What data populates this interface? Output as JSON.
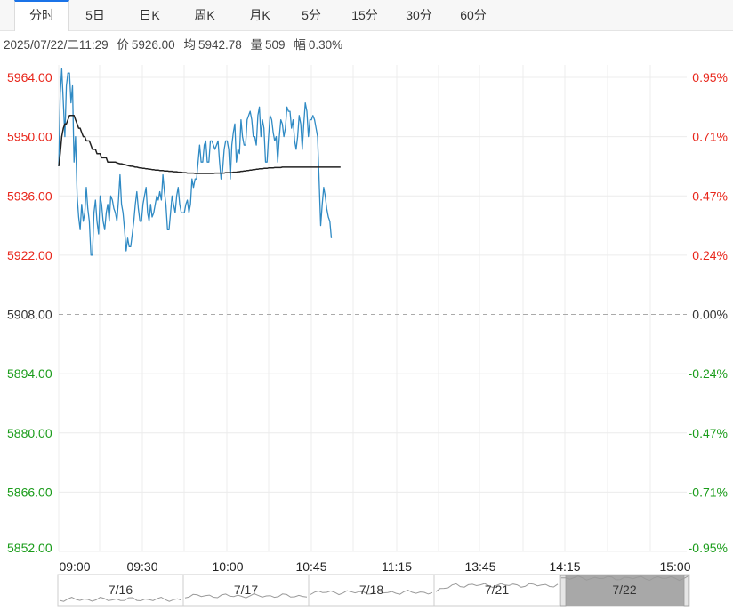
{
  "tabs": [
    {
      "label": "分时",
      "active": true
    },
    {
      "label": "5日",
      "active": false
    },
    {
      "label": "日K",
      "active": false
    },
    {
      "label": "周K",
      "active": false
    },
    {
      "label": "月K",
      "active": false
    },
    {
      "label": "5分",
      "active": false
    },
    {
      "label": "15分",
      "active": false
    },
    {
      "label": "30分",
      "active": false
    },
    {
      "label": "60分",
      "active": false
    }
  ],
  "info": {
    "datetime": "2025/07/22/二11:29",
    "price_label": "价",
    "price": "5926.00",
    "avg_label": "均",
    "avg": "5942.78",
    "volume_label": "量",
    "volume": "509",
    "change_label": "幅",
    "change": "0.30%"
  },
  "colors": {
    "up": "#e8261b",
    "down": "#1a9c1a",
    "neutral": "#333333",
    "price_line": "#2f8ac4",
    "avg_line": "#222222",
    "grid": "#ececec",
    "baseline": "#aaaaaa",
    "navigator_fill": "#a8a8a8"
  },
  "chart_data": {
    "type": "line",
    "grid": true,
    "y_range": [
      5852.0,
      5964.0
    ],
    "prev_close": 5908.0,
    "y_ticks": [
      "5964.00",
      "5950.00",
      "5936.00",
      "5922.00",
      "5908.00",
      "5894.00",
      "5880.00",
      "5866.00",
      "5852.00"
    ],
    "pct_ticks": [
      "0.95%",
      "0.71%",
      "0.47%",
      "0.24%",
      "0.00%",
      "-0.24%",
      "-0.47%",
      "-0.71%",
      "-0.95%"
    ],
    "x_ticks": [
      "09:00",
      "09:30",
      "10:00",
      "10:45",
      "11:15",
      "13:45",
      "14:15",
      "15:00"
    ],
    "series": [
      {
        "name": "价",
        "values": [
          5943,
          5960,
          5966,
          5958,
          5950,
          5962,
          5965,
          5965,
          5958,
          5962,
          5944,
          5950,
          5936,
          5931,
          5928,
          5934,
          5930,
          5932,
          5938,
          5933,
          5930,
          5922,
          5922,
          5932,
          5935,
          5930,
          5927,
          5936,
          5934,
          5930,
          5928,
          5932,
          5934,
          5930,
          5936,
          5935,
          5933,
          5932,
          5930,
          5935,
          5941,
          5934,
          5932,
          5928,
          5923,
          5926,
          5924,
          5924,
          5927,
          5930,
          5934,
          5937,
          5933,
          5930,
          5930,
          5934,
          5936,
          5938,
          5932,
          5930,
          5934,
          5931,
          5932,
          5934,
          5936,
          5935,
          5937,
          5935,
          5941,
          5937,
          5934,
          5928,
          5928,
          5932,
          5936,
          5934,
          5932,
          5936,
          5938,
          5934,
          5932,
          5932,
          5932,
          5934,
          5935,
          5932,
          5934,
          5940,
          5938,
          5940,
          5940,
          5944,
          5948,
          5944,
          5944,
          5948,
          5949,
          5944,
          5944,
          5949,
          5949,
          5948,
          5947,
          5948,
          5949,
          5944,
          5940,
          5942,
          5947,
          5949,
          5949,
          5947,
          5940,
          5948,
          5951,
          5953,
          5944,
          5947,
          5946,
          5954,
          5950,
          5948,
          5948,
          5954,
          5955,
          5956,
          5954,
          5950,
          5950,
          5948,
          5955,
          5957,
          5950,
          5954,
          5952,
          5944,
          5944,
          5950,
          5955,
          5954,
          5951,
          5949,
          5950,
          5944,
          5950,
          5954,
          5953,
          5950,
          5952,
          5957,
          5956,
          5956,
          5952,
          5954,
          5949,
          5947,
          5950,
          5955,
          5953,
          5947,
          5953,
          5958,
          5956,
          5950,
          5954,
          5954,
          5955,
          5954,
          5952,
          5950,
          5940,
          5929,
          5934,
          5938,
          5936,
          5933,
          5931,
          5930,
          5926
        ],
        "color": "#2f8ac4"
      },
      {
        "name": "均",
        "values": [
          5943,
          5946,
          5950,
          5952,
          5953,
          5953,
          5954,
          5955,
          5955,
          5955,
          5955,
          5954,
          5953,
          5952,
          5952,
          5951,
          5950,
          5950,
          5949,
          5949,
          5949,
          5948,
          5947,
          5947,
          5947,
          5946,
          5946,
          5946,
          5945,
          5945,
          5945,
          5945,
          5944,
          5944,
          5944,
          5944,
          5944,
          5944,
          5943.8,
          5943.7,
          5943.6,
          5943.6,
          5943.5,
          5943.4,
          5943.3,
          5943.2,
          5943.1,
          5943,
          5943,
          5942.9,
          5942.8,
          5942.8,
          5942.7,
          5942.6,
          5942.6,
          5942.5,
          5942.5,
          5942.4,
          5942.4,
          5942.3,
          5942.3,
          5942.2,
          5942.2,
          5942.1,
          5942.1,
          5942.1,
          5942,
          5942,
          5942,
          5941.9,
          5941.9,
          5941.9,
          5941.8,
          5941.8,
          5941.8,
          5941.7,
          5941.7,
          5941.7,
          5941.6,
          5941.6,
          5941.6,
          5941.5,
          5941.5,
          5941.5,
          5941.4,
          5941.4,
          5941.4,
          5941.4,
          5941.4,
          5941.3,
          5941.3,
          5941.3,
          5941.3,
          5941.3,
          5941.3,
          5941.3,
          5941.3,
          5941.3,
          5941.3,
          5941.3,
          5941.3,
          5941.3,
          5941.4,
          5941.4,
          5941.4,
          5941.4,
          5941.4,
          5941.4,
          5941.4,
          5941.5,
          5941.5,
          5941.5,
          5941.5,
          5941.5,
          5941.6,
          5941.6,
          5941.6,
          5941.7,
          5941.7,
          5941.8,
          5941.8,
          5941.9,
          5941.9,
          5942,
          5942,
          5942.1,
          5942.1,
          5942.2,
          5942.2,
          5942.3,
          5942.3,
          5942.4,
          5942.4,
          5942.4,
          5942.5,
          5942.5,
          5942.5,
          5942.6,
          5942.6,
          5942.6,
          5942.6,
          5942.7,
          5942.7,
          5942.7,
          5942.7,
          5942.7,
          5942.8,
          5942.8,
          5942.8,
          5942.8,
          5942.8,
          5942.8,
          5942.8,
          5942.8,
          5942.8,
          5942.8,
          5942.8,
          5942.8,
          5942.8,
          5942.8,
          5942.8,
          5942.8,
          5942.8,
          5942.8,
          5942.8,
          5942.8,
          5942.8,
          5942.8,
          5942.8,
          5942.8,
          5942.8,
          5942.8,
          5942.8,
          5942.8,
          5942.8,
          5942.8,
          5942.8,
          5942.8,
          5942.8,
          5942.8,
          5942.8,
          5942.8,
          5942.8,
          5942.8,
          5942.8
        ],
        "color": "#222222"
      }
    ],
    "total_minutes": 410
  },
  "navigator": {
    "days": [
      "7/16",
      "7/17",
      "7/18",
      "7/21",
      "7/22"
    ],
    "selected": "7/22"
  }
}
